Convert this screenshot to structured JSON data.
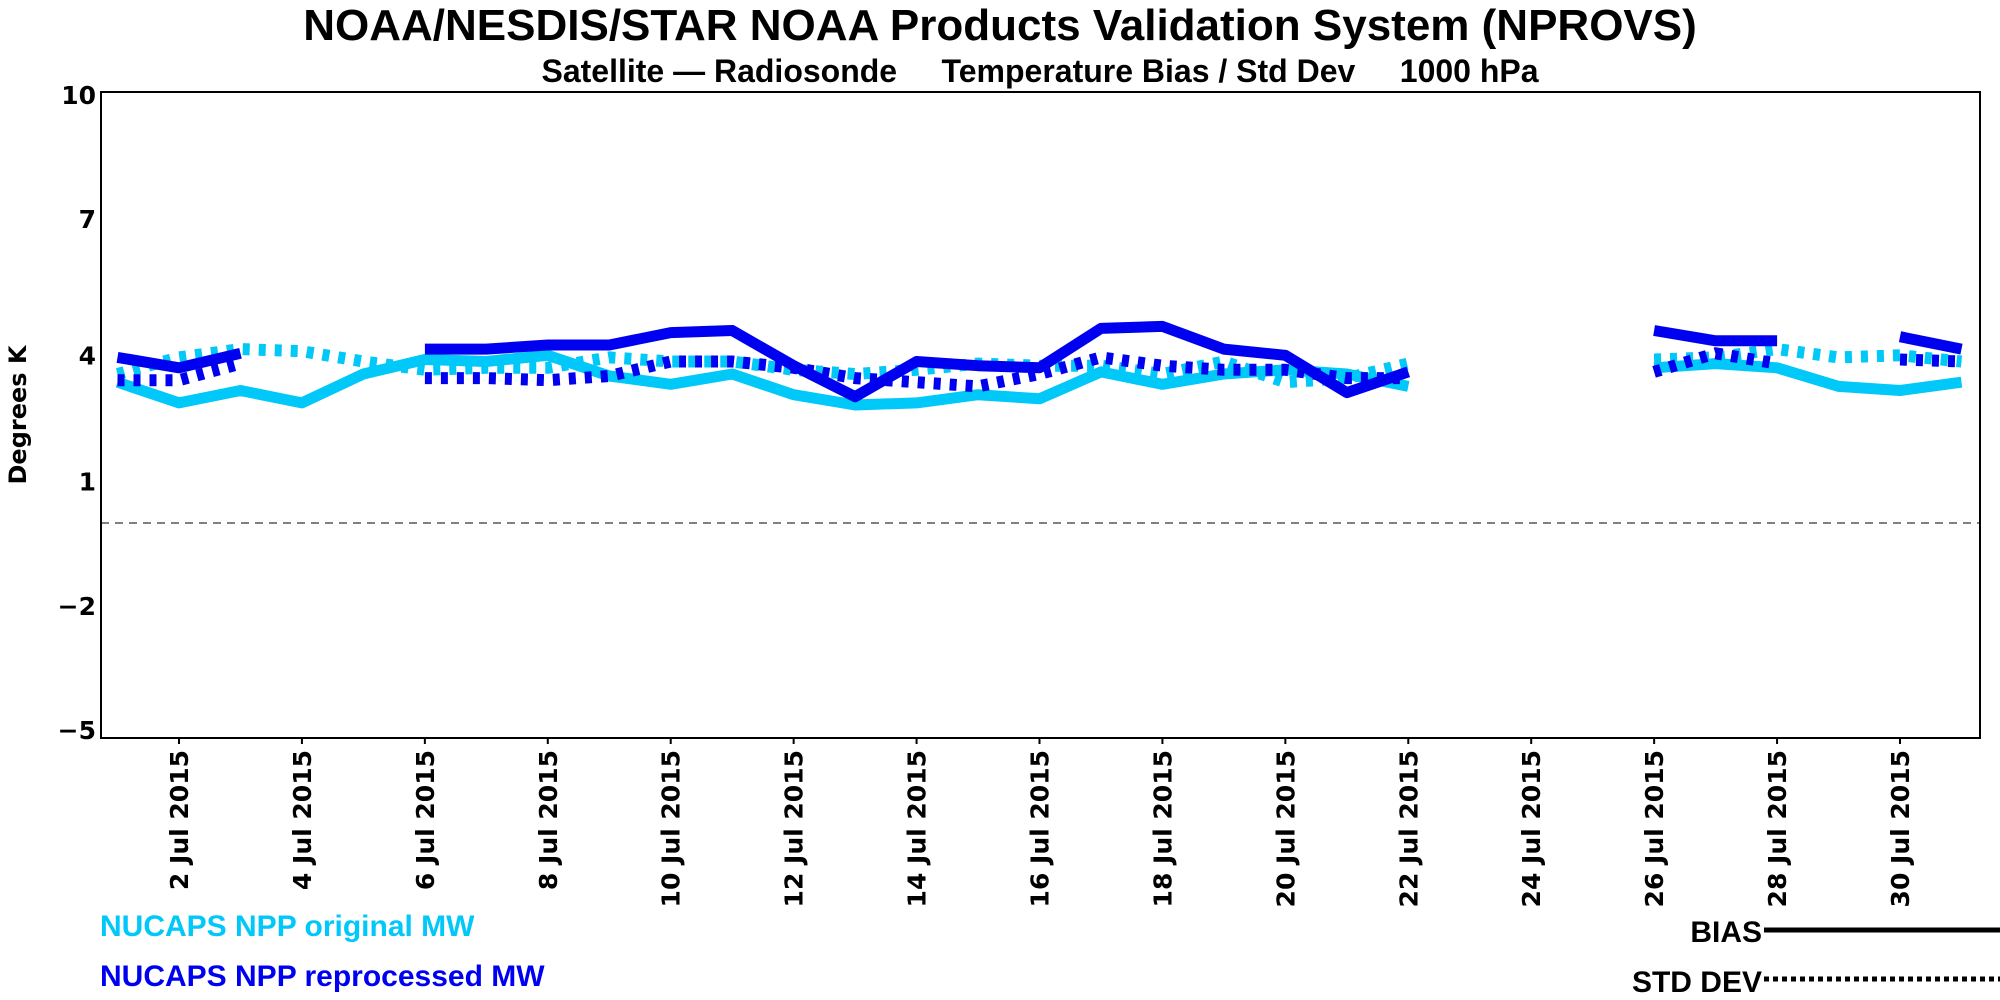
{
  "chart_data": {
    "type": "line",
    "title": "NOAA/NESDIS/STAR  NOAA Products Validation System (NPROVS)",
    "subtitle": "Satellite — Radiosonde     Temperature Bias / Std Dev     1000 hPa",
    "xlabel": "",
    "ylabel": "Degrees K",
    "ylim": [
      -5.5,
      10.5
    ],
    "yticks": [
      10,
      7,
      4,
      1,
      -2,
      -5
    ],
    "ytick_labels": [
      "10",
      "7",
      "4",
      "1",
      "−2",
      "−5"
    ],
    "xlim_days": [
      1,
      31.8
    ],
    "xticks_days": [
      2,
      4,
      6,
      8,
      10,
      12,
      14,
      16,
      18,
      20,
      22,
      24,
      26,
      28,
      30
    ],
    "xtick_labels": [
      "2 Jul 2015",
      "4 Jul 2015",
      "6 Jul 2015",
      "8 Jul 2015",
      "10 Jul 2015",
      "12 Jul 2015",
      "14 Jul 2015",
      "16 Jul 2015",
      "18 Jul 2015",
      "20 Jul 2015",
      "22 Jul 2015",
      "24 Jul 2015",
      "26 Jul 2015",
      "28 Jul 2015",
      "30 Jul 2015"
    ],
    "reference_line": {
      "y": 0,
      "style": "dashed",
      "color": "#808080"
    },
    "grid": false,
    "x_days": [
      1,
      2,
      3,
      4,
      5,
      6,
      7,
      8,
      9,
      10,
      11,
      12,
      13,
      14,
      15,
      16,
      17,
      18,
      19,
      20,
      21,
      22,
      23,
      24,
      25,
      26,
      27,
      28,
      29,
      30,
      31
    ],
    "series": [
      {
        "name": "NUCAPS NPP original MW",
        "stat": "BIAS",
        "color": "#00c8f8",
        "style": "solid",
        "values": [
          3.4,
          2.9,
          3.2,
          2.9,
          3.6,
          3.95,
          3.9,
          4.05,
          3.55,
          3.35,
          3.6,
          3.1,
          2.85,
          2.9,
          3.1,
          3.0,
          3.65,
          3.35,
          3.6,
          3.7,
          3.6,
          3.3,
          null,
          null,
          null,
          3.75,
          3.85,
          3.75,
          3.3,
          3.2,
          3.4
        ]
      },
      {
        "name": "NUCAPS NPP original MW",
        "stat": "STD DEV",
        "color": "#00c8f8",
        "style": "dotted",
        "values": [
          3.6,
          4.0,
          4.2,
          4.15,
          3.9,
          3.7,
          3.75,
          3.75,
          4.0,
          3.9,
          3.9,
          3.7,
          3.6,
          3.7,
          3.85,
          3.8,
          3.8,
          3.6,
          3.9,
          3.4,
          3.5,
          3.85,
          null,
          null,
          null,
          3.95,
          4.0,
          4.2,
          4.0,
          4.05,
          3.9
        ]
      },
      {
        "name": "NUCAPS NPP reprocessed MW",
        "stat": "BIAS",
        "color": "#0000f0",
        "style": "solid",
        "values": [
          4.0,
          3.75,
          4.1,
          null,
          null,
          4.2,
          4.2,
          4.3,
          4.3,
          4.6,
          4.65,
          3.8,
          3.05,
          3.9,
          3.8,
          3.75,
          4.7,
          4.75,
          4.2,
          4.05,
          3.15,
          3.65,
          null,
          null,
          null,
          4.65,
          4.4,
          4.4,
          null,
          4.5,
          4.2
        ]
      },
      {
        "name": "NUCAPS NPP reprocessed MW",
        "stat": "STD DEV",
        "color": "#0000f0",
        "style": "dotted",
        "values": [
          3.45,
          3.45,
          3.85,
          null,
          null,
          3.5,
          3.5,
          3.45,
          3.55,
          3.9,
          3.9,
          3.75,
          3.5,
          3.4,
          3.3,
          3.6,
          4.0,
          3.8,
          3.7,
          3.7,
          3.5,
          3.5,
          null,
          null,
          null,
          3.65,
          4.1,
          3.85,
          null,
          3.95,
          3.9
        ]
      }
    ],
    "legend": {
      "series_entries": [
        {
          "label": "NUCAPS NPP original MW",
          "color": "#00c8f8"
        },
        {
          "label": "NUCAPS NPP reprocessed MW",
          "color": "#0000f0"
        }
      ],
      "style_entries": [
        {
          "label": "BIAS",
          "style": "solid"
        },
        {
          "label": "STD DEV",
          "style": "dotted"
        }
      ],
      "placement": "bottom"
    }
  }
}
